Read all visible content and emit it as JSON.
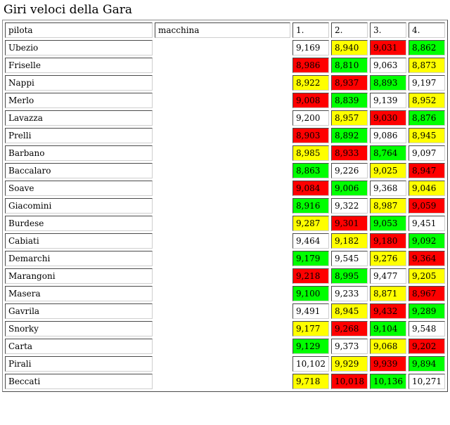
{
  "page_title": "Giri veloci della Gara",
  "headers": {
    "pilot": "pilota",
    "car": "macchina",
    "lap1": "1.",
    "lap2": "2.",
    "lap3": "3.",
    "lap4": "4."
  },
  "colors": {
    "white": "#ffffff",
    "yellow": "#ffff00",
    "green": "#00ff00",
    "red": "#ff0000"
  },
  "rows": [
    {
      "pilot": "Ubezio",
      "car": "",
      "laps": [
        {
          "v": "9,169",
          "c": "w"
        },
        {
          "v": "8,940",
          "c": "y"
        },
        {
          "v": "9,031",
          "c": "r"
        },
        {
          "v": "8,862",
          "c": "g"
        }
      ]
    },
    {
      "pilot": "Friselle",
      "car": "",
      "laps": [
        {
          "v": "8,986",
          "c": "r"
        },
        {
          "v": "8,810",
          "c": "g"
        },
        {
          "v": "9,063",
          "c": "w"
        },
        {
          "v": "8,873",
          "c": "y"
        }
      ]
    },
    {
      "pilot": "Nappi",
      "car": "",
      "laps": [
        {
          "v": "8,922",
          "c": "y"
        },
        {
          "v": "8,937",
          "c": "r"
        },
        {
          "v": "8,893",
          "c": "g"
        },
        {
          "v": "9,197",
          "c": "w"
        }
      ]
    },
    {
      "pilot": "Merlo",
      "car": "",
      "laps": [
        {
          "v": "9,008",
          "c": "r"
        },
        {
          "v": "8,839",
          "c": "g"
        },
        {
          "v": "9,139",
          "c": "w"
        },
        {
          "v": "8,952",
          "c": "y"
        }
      ]
    },
    {
      "pilot": "Lavazza",
      "car": "",
      "laps": [
        {
          "v": "9,200",
          "c": "w"
        },
        {
          "v": "8,957",
          "c": "y"
        },
        {
          "v": "9,030",
          "c": "r"
        },
        {
          "v": "8,876",
          "c": "g"
        }
      ]
    },
    {
      "pilot": "Prelli",
      "car": "",
      "laps": [
        {
          "v": "8,903",
          "c": "r"
        },
        {
          "v": "8,892",
          "c": "g"
        },
        {
          "v": "9,086",
          "c": "w"
        },
        {
          "v": "8,945",
          "c": "y"
        }
      ]
    },
    {
      "pilot": "Barbano",
      "car": "",
      "laps": [
        {
          "v": "8,985",
          "c": "y"
        },
        {
          "v": "8,933",
          "c": "r"
        },
        {
          "v": "8,764",
          "c": "g"
        },
        {
          "v": "9,097",
          "c": "w"
        }
      ]
    },
    {
      "pilot": "Baccalaro",
      "car": "",
      "laps": [
        {
          "v": "8,863",
          "c": "g"
        },
        {
          "v": "9,226",
          "c": "w"
        },
        {
          "v": "9,025",
          "c": "y"
        },
        {
          "v": "8,947",
          "c": "r"
        }
      ]
    },
    {
      "pilot": "Soave",
      "car": "",
      "laps": [
        {
          "v": "9,084",
          "c": "r"
        },
        {
          "v": "9,006",
          "c": "g"
        },
        {
          "v": "9,368",
          "c": "w"
        },
        {
          "v": "9,046",
          "c": "y"
        }
      ]
    },
    {
      "pilot": "Giacomini",
      "car": "",
      "laps": [
        {
          "v": "8,916",
          "c": "g"
        },
        {
          "v": "9,322",
          "c": "w"
        },
        {
          "v": "8,987",
          "c": "y"
        },
        {
          "v": "9,059",
          "c": "r"
        }
      ]
    },
    {
      "pilot": "Burdese",
      "car": "",
      "laps": [
        {
          "v": "9,287",
          "c": "y"
        },
        {
          "v": "9,301",
          "c": "r"
        },
        {
          "v": "9,053",
          "c": "g"
        },
        {
          "v": "9,451",
          "c": "w"
        }
      ]
    },
    {
      "pilot": "Cabiati",
      "car": "",
      "laps": [
        {
          "v": "9,464",
          "c": "w"
        },
        {
          "v": "9,182",
          "c": "y"
        },
        {
          "v": "9,180",
          "c": "r"
        },
        {
          "v": "9,092",
          "c": "g"
        }
      ]
    },
    {
      "pilot": "Demarchi",
      "car": "",
      "laps": [
        {
          "v": "9,179",
          "c": "g"
        },
        {
          "v": "9,545",
          "c": "w"
        },
        {
          "v": "9,276",
          "c": "y"
        },
        {
          "v": "9,364",
          "c": "r"
        }
      ]
    },
    {
      "pilot": "Marangoni",
      "car": "",
      "laps": [
        {
          "v": "9,218",
          "c": "r"
        },
        {
          "v": "8,995",
          "c": "g"
        },
        {
          "v": "9,477",
          "c": "w"
        },
        {
          "v": "9,205",
          "c": "y"
        }
      ]
    },
    {
      "pilot": "Masera",
      "car": "",
      "laps": [
        {
          "v": "9,100",
          "c": "g"
        },
        {
          "v": "9,233",
          "c": "w"
        },
        {
          "v": "8,871",
          "c": "y"
        },
        {
          "v": "8,967",
          "c": "r"
        }
      ]
    },
    {
      "pilot": "Gavrila",
      "car": "",
      "laps": [
        {
          "v": "9,491",
          "c": "w"
        },
        {
          "v": "8,945",
          "c": "y"
        },
        {
          "v": "9,432",
          "c": "r"
        },
        {
          "v": "9,289",
          "c": "g"
        }
      ]
    },
    {
      "pilot": "Snorky",
      "car": "",
      "laps": [
        {
          "v": "9,177",
          "c": "y"
        },
        {
          "v": "9,268",
          "c": "r"
        },
        {
          "v": "9,104",
          "c": "g"
        },
        {
          "v": "9,548",
          "c": "w"
        }
      ]
    },
    {
      "pilot": "Carta",
      "car": "",
      "laps": [
        {
          "v": "9,129",
          "c": "g"
        },
        {
          "v": "9,373",
          "c": "w"
        },
        {
          "v": "9,068",
          "c": "y"
        },
        {
          "v": "9,202",
          "c": "r"
        }
      ]
    },
    {
      "pilot": "Pirali",
      "car": "",
      "laps": [
        {
          "v": "10,102",
          "c": "w"
        },
        {
          "v": "9,929",
          "c": "y"
        },
        {
          "v": "9,939",
          "c": "r"
        },
        {
          "v": "9,894",
          "c": "g"
        }
      ]
    },
    {
      "pilot": "Beccati",
      "car": "",
      "laps": [
        {
          "v": "9,718",
          "c": "y"
        },
        {
          "v": "10,018",
          "c": "r"
        },
        {
          "v": "10,136",
          "c": "g"
        },
        {
          "v": "10,271",
          "c": "w"
        }
      ]
    }
  ]
}
